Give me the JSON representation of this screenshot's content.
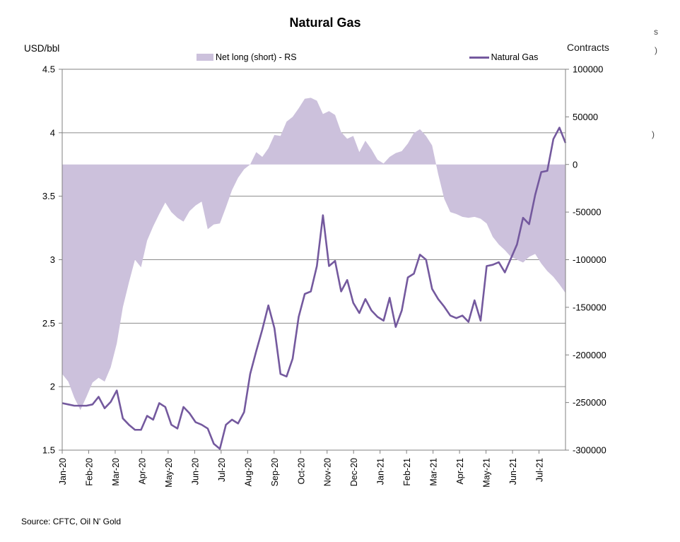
{
  "title": "Natural Gas",
  "left_axis_unit": "USD/bbl",
  "right_axis_unit": "Contracts",
  "legend": {
    "area_label": "Net long (short) - RS",
    "line_label": "Natural Gas"
  },
  "source_note": "Source: CFTC, Oil N' Gold",
  "edge_fragments": {
    "f1": "s",
    "f2": ")",
    "f3": ")"
  },
  "colors": {
    "area_fill": "#CCC1DC",
    "line": "#74599E",
    "grid": "#8C8C8C",
    "axis": "#808080",
    "text": "#000000"
  },
  "chart_data": {
    "type": "combo-area-line",
    "title": "Natural Gas",
    "x_tick_labels": [
      "Jan-20",
      "Feb-20",
      "Mar-20",
      "Apr-20",
      "May-20",
      "Jun-20",
      "Jul-20",
      "Aug-20",
      "Sep-20",
      "Oct-20",
      "Nov-20",
      "Dec-20",
      "Jan-21",
      "Feb-21",
      "Mar-21",
      "Apr-21",
      "May-21",
      "Jun-21",
      "Jul-21"
    ],
    "left_axis": {
      "label": "USD/bbl",
      "ticks": [
        "4.5",
        "4",
        "3.5",
        "3",
        "2.5",
        "2",
        "1.5"
      ],
      "tick_values": [
        4.5,
        4,
        3.5,
        3,
        2.5,
        2,
        1.5
      ],
      "range": [
        1.5,
        4.5
      ]
    },
    "right_axis": {
      "label": "Contracts",
      "ticks": [
        "100000",
        "50000",
        "0",
        "-50000",
        "-100000",
        "-150000",
        "-200000",
        "-250000",
        "-300000"
      ],
      "tick_values": [
        100000,
        50000,
        0,
        -50000,
        -100000,
        -150000,
        -200000,
        -250000,
        -300000
      ],
      "range": [
        -300000,
        100000
      ]
    },
    "grid_values_left_axis": [
      4.5,
      4,
      3.5,
      3,
      2.5,
      2
    ],
    "legend_position": "top-center",
    "series": [
      {
        "name": "Net long (short) - RS",
        "type": "area",
        "axis": "right",
        "unit": "contracts",
        "sampling": "weekly",
        "values": [
          -220000,
          -228000,
          -245000,
          -258000,
          -244000,
          -229000,
          -224000,
          -228000,
          -213000,
          -188000,
          -150000,
          -124000,
          -100000,
          -108000,
          -80000,
          -65000,
          -52000,
          -40000,
          -50000,
          -56000,
          -60000,
          -49000,
          -43000,
          -39000,
          -68000,
          -63000,
          -62000,
          -45000,
          -27000,
          -14000,
          -5000,
          0,
          13000,
          8000,
          17000,
          31000,
          30000,
          45000,
          50000,
          59000,
          69000,
          70000,
          67000,
          53000,
          56000,
          52000,
          34000,
          27000,
          30000,
          13000,
          25000,
          16000,
          5000,
          1000,
          8000,
          12000,
          14000,
          22000,
          33000,
          37000,
          30000,
          20000,
          -10000,
          -36000,
          -50000,
          -52000,
          -55000,
          -56000,
          -55000,
          -57000,
          -62000,
          -76000,
          -84000,
          -90000,
          -97000,
          -100000,
          -103000,
          -97000,
          -94000,
          -104000,
          -112000,
          -118000,
          -126000,
          -135000
        ]
      },
      {
        "name": "Natural Gas",
        "type": "line",
        "axis": "left",
        "unit": "USD/bbl",
        "sampling": "weekly",
        "values": [
          1.87,
          1.86,
          1.85,
          1.85,
          1.85,
          1.86,
          1.92,
          1.83,
          1.88,
          1.97,
          1.75,
          1.7,
          1.66,
          1.66,
          1.77,
          1.74,
          1.87,
          1.84,
          1.7,
          1.67,
          1.84,
          1.79,
          1.72,
          1.7,
          1.67,
          1.55,
          1.51,
          1.7,
          1.74,
          1.71,
          1.8,
          2.1,
          2.28,
          2.45,
          2.64,
          2.46,
          2.1,
          2.08,
          2.22,
          2.55,
          2.73,
          2.75,
          2.95,
          3.35,
          2.95,
          2.99,
          2.75,
          2.84,
          2.66,
          2.58,
          2.69,
          2.6,
          2.55,
          2.52,
          2.7,
          2.47,
          2.6,
          2.86,
          2.89,
          3.04,
          3.0,
          2.77,
          2.69,
          2.63,
          2.56,
          2.54,
          2.56,
          2.51,
          2.68,
          2.52,
          2.95,
          2.96,
          2.98,
          2.9,
          3.01,
          3.12,
          3.33,
          3.28,
          3.51,
          3.69,
          3.7,
          3.95,
          4.04,
          3.92
        ]
      }
    ]
  }
}
